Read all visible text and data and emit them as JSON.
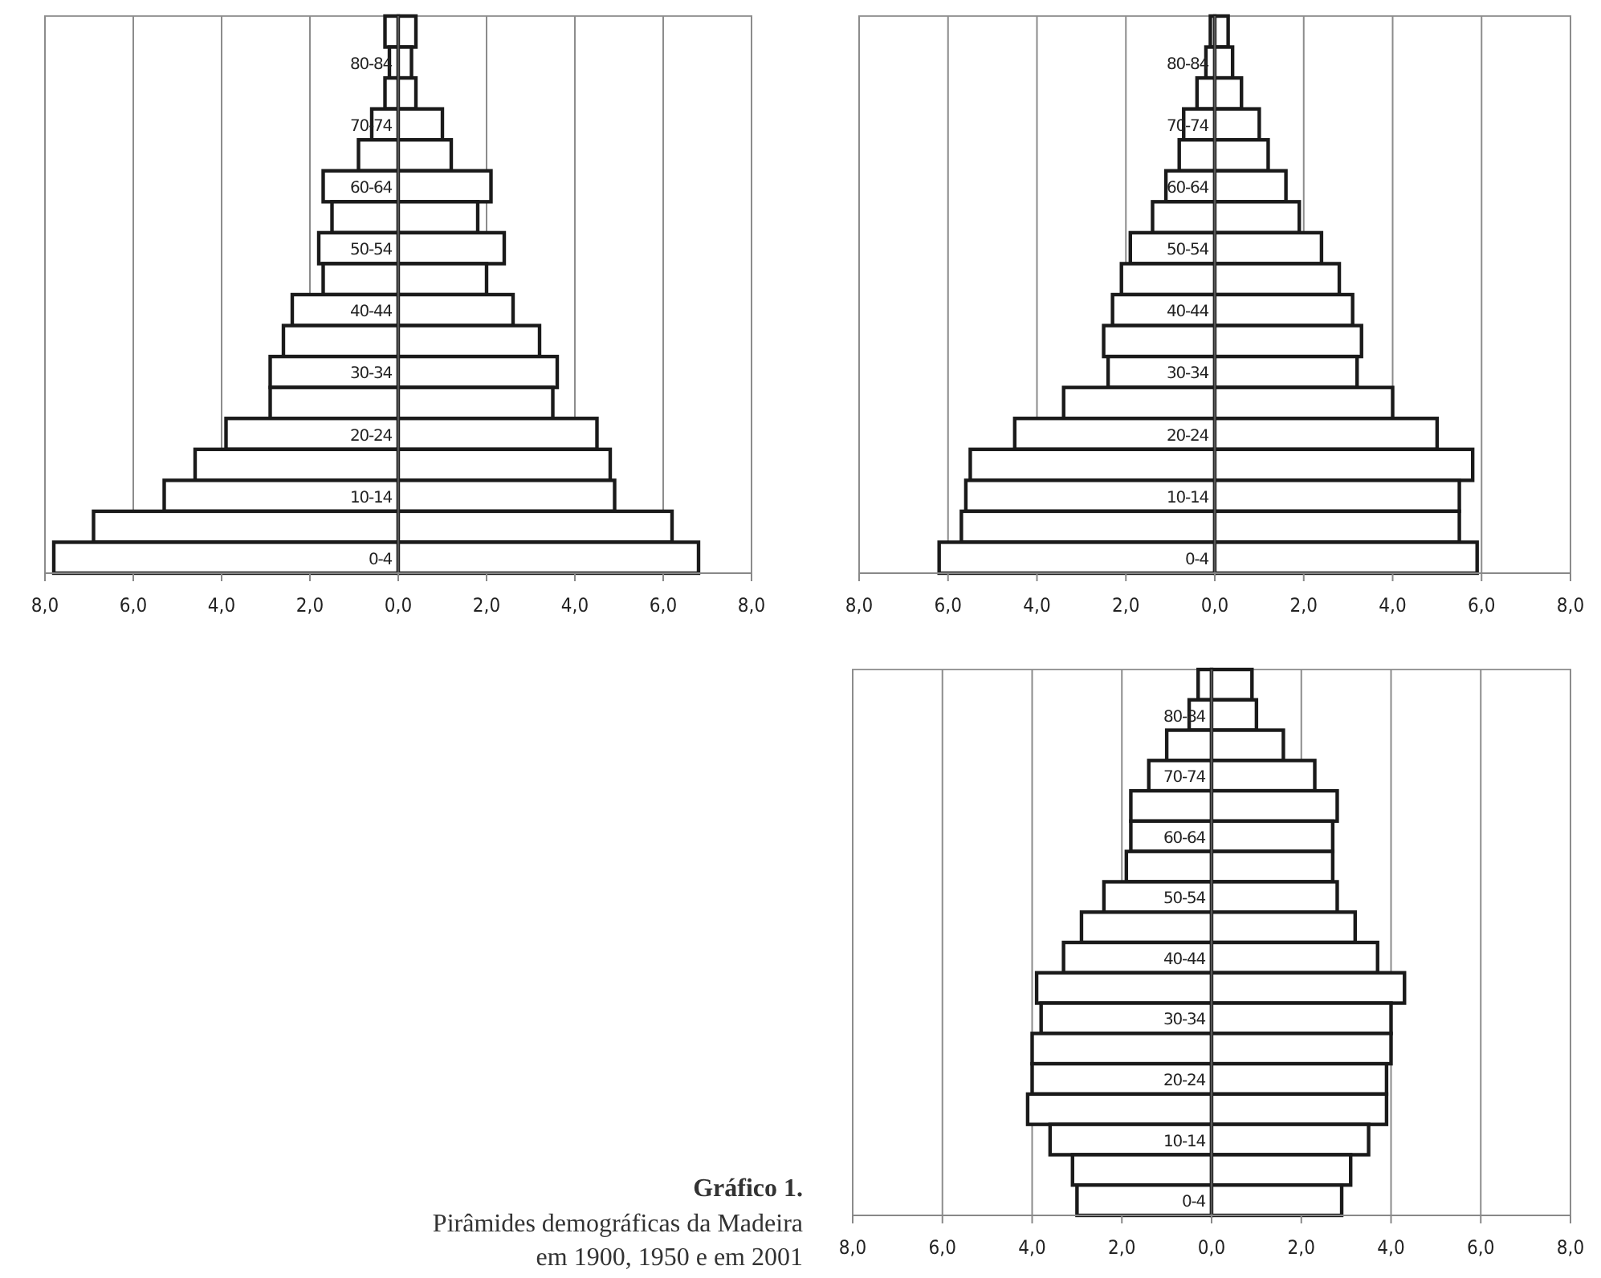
{
  "chart_data": [
    {
      "type": "bar",
      "orientation": "horizontal",
      "stacked": true,
      "grid": "x",
      "categories": [
        null,
        "80-84",
        null,
        "70-74",
        null,
        "60-64",
        null,
        "50-54",
        null,
        "40-44",
        null,
        "30-34",
        null,
        "20-24",
        null,
        "10-14",
        null,
        "0-4"
      ],
      "series": [
        {
          "color": "#ffffff",
          "values": [
            -0.3,
            -0.2,
            -0.3,
            -0.6,
            -0.9,
            -1.7,
            -1.5,
            -1.8,
            -1.7,
            -2.4,
            -2.6,
            -2.9,
            -2.9,
            -3.9,
            -4.6,
            -5.3,
            -6.9,
            -7.8
          ]
        },
        {
          "color": "#ffffff",
          "values": [
            0.4,
            0.3,
            0.4,
            1.0,
            1.2,
            2.1,
            1.8,
            2.4,
            2.0,
            2.6,
            3.2,
            3.6,
            3.5,
            4.5,
            4.8,
            4.9,
            6.2,
            6.8
          ]
        }
      ],
      "xlim": [
        -8,
        8
      ],
      "xticks": [
        {
          "value": -8,
          "label": "8,0"
        },
        {
          "value": -6,
          "label": "6,0"
        },
        {
          "value": -4,
          "label": "4,0"
        },
        {
          "value": -2,
          "label": "2,0"
        },
        {
          "value": 0,
          "label": "0,0"
        },
        {
          "value": 2,
          "label": "2,0"
        },
        {
          "value": 4,
          "label": "4,0"
        },
        {
          "value": 6,
          "label": "6,0"
        },
        {
          "value": 8,
          "label": "8,0"
        }
      ],
      "annotations": [
        "Gráfico 1.",
        "Pirâmides demográficas da Madeira em 1900, 1950 e em 2001"
      ]
    },
    {
      "type": "bar",
      "orientation": "horizontal",
      "stacked": true,
      "grid": "x",
      "categories": [
        null,
        "80-84",
        null,
        "70-74",
        null,
        "60-64",
        null,
        "50-54",
        null,
        "40-44",
        null,
        "30-34",
        null,
        "20-24",
        null,
        "10-14",
        null,
        "0-4"
      ],
      "series": [
        {
          "color": "#ffffff",
          "values": [
            -0.1,
            -0.2,
            -0.4,
            -0.7,
            -0.8,
            -1.1,
            -1.4,
            -1.9,
            -2.1,
            -2.3,
            -2.5,
            -2.4,
            -3.4,
            -4.5,
            -5.5,
            -5.6,
            -5.7,
            -6.2
          ]
        },
        {
          "color": "#ffffff",
          "values": [
            0.3,
            0.4,
            0.6,
            1.0,
            1.2,
            1.6,
            1.9,
            2.4,
            2.8,
            3.1,
            3.3,
            3.2,
            4.0,
            5.0,
            5.8,
            5.5,
            5.5,
            5.9
          ]
        }
      ],
      "xlim": [
        -8,
        8
      ],
      "xticks": [
        {
          "value": -8,
          "label": "8,0"
        },
        {
          "value": -6,
          "label": "6,0"
        },
        {
          "value": -4,
          "label": "4,0"
        },
        {
          "value": -2,
          "label": "2,0"
        },
        {
          "value": 0,
          "label": "0,0"
        },
        {
          "value": 2,
          "label": "2,0"
        },
        {
          "value": 4,
          "label": "4,0"
        },
        {
          "value": 6,
          "label": "6,0"
        },
        {
          "value": 8,
          "label": "8,0"
        }
      ]
    },
    {
      "type": "bar",
      "orientation": "horizontal",
      "stacked": true,
      "grid": "x",
      "categories": [
        null,
        "80-84",
        null,
        "70-74",
        null,
        "60-64",
        null,
        "50-54",
        null,
        "40-44",
        null,
        "30-34",
        null,
        "20-24",
        null,
        "10-14",
        null,
        "0-4"
      ],
      "series": [
        {
          "color": "#ffffff",
          "values": [
            -0.3,
            -0.5,
            -1.0,
            -1.4,
            -1.8,
            -1.8,
            -1.9,
            -2.4,
            -2.9,
            -3.3,
            -3.9,
            -3.8,
            -4.0,
            -4.0,
            -4.1,
            -3.6,
            -3.1,
            -3.0
          ]
        },
        {
          "color": "#ffffff",
          "values": [
            0.9,
            1.0,
            1.6,
            2.3,
            2.8,
            2.7,
            2.7,
            2.8,
            3.2,
            3.7,
            4.3,
            4.0,
            4.0,
            3.9,
            3.9,
            3.5,
            3.1,
            2.9
          ]
        }
      ],
      "xlim": [
        -8,
        8
      ],
      "xticks": [
        {
          "value": -8,
          "label": "8,0"
        },
        {
          "value": -6,
          "label": "6,0"
        },
        {
          "value": -4,
          "label": "4,0"
        },
        {
          "value": -2,
          "label": "2,0"
        },
        {
          "value": 0,
          "label": "0,0"
        },
        {
          "value": 2,
          "label": "2,0"
        },
        {
          "value": 4,
          "label": "4,0"
        },
        {
          "value": 6,
          "label": "6,0"
        },
        {
          "value": 8,
          "label": "8,0"
        }
      ]
    }
  ]
}
